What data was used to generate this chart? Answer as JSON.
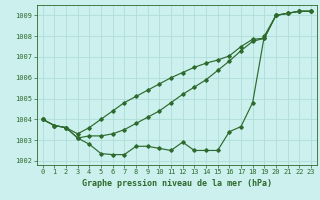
{
  "xlabel": "Graphe pression niveau de la mer (hPa)",
  "hours": [
    0,
    1,
    2,
    3,
    4,
    5,
    6,
    7,
    8,
    9,
    10,
    11,
    12,
    13,
    14,
    15,
    16,
    17,
    18,
    19,
    20,
    21,
    22,
    23
  ],
  "line1": [
    1004.0,
    1003.7,
    1003.6,
    1003.1,
    1002.8,
    1002.35,
    1002.3,
    1002.3,
    1002.7,
    1002.7,
    1002.6,
    1002.5,
    1002.9,
    1002.5,
    1002.5,
    1002.5,
    1003.4,
    1003.65,
    1004.8,
    1008.0,
    1009.0,
    1009.1,
    1009.2,
    1009.2
  ],
  "line2": [
    1004.0,
    1003.7,
    1003.6,
    1003.1,
    1003.2,
    1003.2,
    1003.3,
    1003.5,
    1003.8,
    1004.1,
    1004.4,
    1004.8,
    1005.2,
    1005.55,
    1005.9,
    1006.35,
    1006.8,
    1007.3,
    1007.75,
    1007.9,
    1009.0,
    1009.1,
    1009.2,
    1009.2
  ],
  "line3": [
    1004.0,
    1003.7,
    1003.6,
    1003.3,
    1003.6,
    1004.0,
    1004.4,
    1004.8,
    1005.1,
    1005.4,
    1005.7,
    1006.0,
    1006.25,
    1006.5,
    1006.7,
    1006.85,
    1007.05,
    1007.5,
    1007.85,
    1007.9,
    1009.0,
    1009.1,
    1009.2,
    1009.2
  ],
  "line_color": "#2d6a2d",
  "bg_color": "#ccf0ee",
  "grid_color": "#b0ddd8",
  "ylim": [
    1001.8,
    1009.5
  ],
  "yticks": [
    1002,
    1003,
    1004,
    1005,
    1006,
    1007,
    1008,
    1009
  ],
  "tick_fontsize": 5.0,
  "label_fontsize": 6.0,
  "marker": "D",
  "marker_size": 1.8,
  "linewidth": 0.85
}
